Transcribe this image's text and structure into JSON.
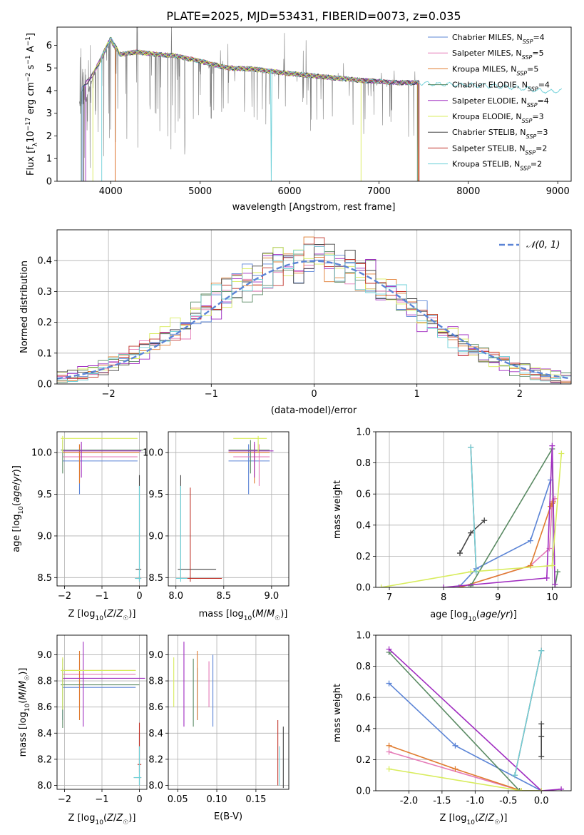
{
  "figure": {
    "title": "PLATE=2025, MJD=53431, FIBERID=0073, z=0.035"
  },
  "colors": {
    "series": [
      "#5b84d6",
      "#e57ab7",
      "#e07c30",
      "#5a8a63",
      "#a02cc0",
      "#d8ec5c",
      "#444444",
      "#c0332a",
      "#6ed0d8"
    ],
    "data_spectrum": "#808080",
    "normal": "#5b84d6",
    "grid": "#b0b0b0"
  },
  "legend_models": [
    {
      "name": "Chabrier MILES, N",
      "sub": "SSP",
      "suffix": "=4"
    },
    {
      "name": "Salpeter MILES, N",
      "sub": "SSP",
      "suffix": "=5"
    },
    {
      "name": "Kroupa MILES, N",
      "sub": "SSP",
      "suffix": "=5"
    },
    {
      "name": "Chabrier ELODIE, N",
      "sub": "SSP",
      "suffix": "=4"
    },
    {
      "name": "Salpeter ELODIE, N",
      "sub": "SSP",
      "suffix": "=4"
    },
    {
      "name": "Kroupa ELODIE, N",
      "sub": "SSP",
      "suffix": "=3"
    },
    {
      "name": "Chabrier STELIB, N",
      "sub": "SSP",
      "suffix": "=3"
    },
    {
      "name": "Salpeter STELIB, N",
      "sub": "SSP",
      "suffix": "=2"
    },
    {
      "name": "Kroupa STELIB, N",
      "sub": "SSP",
      "suffix": "=2"
    }
  ],
  "chart_data": [
    {
      "id": "spectrum",
      "type": "line",
      "xlabel": "wavelength [Angstrom, rest frame]",
      "ylabel_parts": [
        "Flux [f",
        "λ",
        "10",
        "−17",
        " erg cm",
        "−2",
        " s",
        "−1",
        " A",
        "−1",
        "]"
      ],
      "xlim": [
        3400,
        9150
      ],
      "ylim": [
        0,
        6.8
      ],
      "xticks": [
        4000,
        5000,
        6000,
        7000,
        8000,
        9000
      ],
      "yticks": [
        0,
        1,
        2,
        3,
        4,
        5,
        6
      ],
      "grid": false,
      "legend": "top-right",
      "continuum_x": [
        3650,
        3720,
        3800,
        3900,
        4000,
        4100,
        4300,
        4500,
        4700,
        5000,
        5300,
        5600,
        6000,
        6400,
        6800,
        7200,
        7420
      ],
      "continuum_y": [
        3.4,
        3.5,
        4.6,
        5.4,
        6.2,
        5.6,
        5.7,
        5.6,
        5.55,
        5.3,
        5.0,
        4.95,
        4.75,
        4.6,
        4.45,
        4.35,
        4.35
      ],
      "model_x": [
        3650,
        3720,
        3800,
        3900,
        4000,
        4100,
        4300,
        4500,
        4700,
        5000,
        5300,
        5600,
        6000,
        6400,
        6800,
        7200,
        7420,
        7600,
        8000,
        8300,
        8600,
        8900,
        9050
      ],
      "model_y": [
        3.9,
        4.3,
        4.7,
        5.5,
        6.3,
        5.6,
        5.7,
        5.6,
        5.55,
        5.3,
        5.0,
        4.95,
        4.75,
        4.6,
        4.45,
        4.35,
        4.35,
        4.3,
        4.25,
        4.2,
        4.1,
        3.95,
        4.0
      ]
    },
    {
      "id": "residuals",
      "type": "histogram",
      "xlabel": "(data-model)/error",
      "ylabel": "Normed distribution",
      "xlim": [
        -2.5,
        2.5
      ],
      "ylim": [
        0,
        0.5
      ],
      "xticks": [
        -2,
        -1,
        0,
        1,
        2
      ],
      "yticks": [
        0.0,
        0.1,
        0.2,
        0.3,
        0.4
      ],
      "grid": true,
      "legend": "top-right",
      "reference_curve": "𝒩(0, 1)"
    },
    {
      "id": "age_vs_Z",
      "type": "scatter",
      "xlabel": "Z [log₁₀(Z/Z☉)]",
      "ylabel": "age  [log₁₀(age/yr)]",
      "xlim": [
        -2.2,
        0.2
      ],
      "ylim": [
        8.4,
        10.25
      ],
      "xticks": [
        -2,
        -1,
        0
      ],
      "yticks": [
        8.5,
        9.0,
        9.5,
        10.0
      ],
      "grid": true
    },
    {
      "id": "age_vs_mass",
      "type": "scatter",
      "xlabel": "mass [log₁₀(M/M☉)]",
      "xlim": [
        7.92,
        9.18
      ],
      "ylim": [
        8.4,
        10.25
      ],
      "xticks": [
        8.0,
        8.5,
        9.0
      ],
      "yticks": [
        8.5,
        9.0,
        9.5,
        10.0
      ],
      "grid": true
    },
    {
      "id": "weight_vs_age",
      "type": "line",
      "xlabel": "age  [log₁₀(age/yr)]",
      "ylabel": "mass weight",
      "xlim": [
        6.75,
        10.35
      ],
      "ylim": [
        0,
        1.0
      ],
      "xticks": [
        7,
        8,
        9,
        10
      ],
      "yticks": [
        0.0,
        0.2,
        0.4,
        0.6,
        0.8,
        1.0
      ],
      "grid": true,
      "series": [
        {
          "x": [
            8.28,
            8.6,
            9.6,
            9.97
          ],
          "y": [
            0.0,
            0.12,
            0.3,
            0.69
          ]
        },
        {
          "x": [
            8.3,
            9.6,
            9.95,
            10.0,
            10.05
          ],
          "y": [
            0.0,
            0.14,
            0.25,
            0.55,
            0.57
          ]
        },
        {
          "x": [
            8.3,
            9.6,
            9.97,
            10.0,
            10.02
          ],
          "y": [
            0.0,
            0.14,
            0.52,
            0.54,
            0.55
          ]
        },
        {
          "x": [
            8.5,
            10.0,
            10.05,
            10.1
          ],
          "y": [
            0.01,
            0.89,
            0.0,
            0.1
          ]
        },
        {
          "x": [
            8.0,
            9.9,
            10.0,
            10.05
          ],
          "y": [
            0.0,
            0.06,
            0.91,
            0.02
          ]
        },
        {
          "x": [
            6.85,
            8.5,
            10.0,
            10.17
          ],
          "y": [
            0.0,
            0.1,
            0.14,
            0.86
          ]
        },
        {
          "x": [
            8.3,
            8.5,
            8.75
          ],
          "y": [
            0.22,
            0.35,
            0.43
          ]
        },
        {
          "x": [
            8.5,
            8.6
          ],
          "y": [
            0.9,
            0.1
          ]
        },
        {
          "x": [
            8.5,
            8.6
          ],
          "y": [
            0.9,
            0.1
          ]
        }
      ]
    },
    {
      "id": "mass_vs_Z",
      "type": "scatter",
      "xlabel": "Z [log₁₀(Z/Z☉)]",
      "ylabel": "mass [log₁₀(M/M☉)]",
      "xlim": [
        -2.2,
        0.2
      ],
      "ylim": [
        7.97,
        9.15
      ],
      "xticks": [
        -2,
        -1,
        0
      ],
      "yticks": [
        8.0,
        8.2,
        8.4,
        8.6,
        8.8,
        9.0
      ],
      "grid": true
    },
    {
      "id": "mass_vs_EBV",
      "type": "scatter",
      "xlabel": "E(B-V)",
      "xlim": [
        0.038,
        0.192
      ],
      "ylim": [
        7.97,
        9.15
      ],
      "xticks": [
        0.05,
        0.1,
        0.15
      ],
      "yticks": [
        8.0,
        8.2,
        8.4,
        8.6,
        8.8,
        9.0
      ],
      "grid": true
    },
    {
      "id": "weight_vs_Z",
      "type": "line",
      "xlabel": "Z [log₁₀(Z/Z☉)]",
      "ylabel": "mass weight",
      "xlim": [
        -2.5,
        0.45
      ],
      "ylim": [
        0,
        1.0
      ],
      "xticks": [
        -2.0,
        -1.5,
        -1.0,
        -0.5,
        0.0
      ],
      "yticks": [
        0.0,
        0.2,
        0.4,
        0.6,
        0.8,
        1.0
      ],
      "grid": true,
      "series": [
        {
          "x": [
            -2.3,
            -1.3,
            0.0
          ],
          "y": [
            0.69,
            0.29,
            0.0
          ]
        },
        {
          "x": [
            -2.3,
            -0.3,
            0.0
          ],
          "y": [
            0.25,
            0.0,
            0.0
          ]
        },
        {
          "x": [
            -2.3,
            -1.3,
            -0.3,
            0.0
          ],
          "y": [
            0.29,
            0.14,
            0.0,
            0.0
          ]
        },
        {
          "x": [
            -2.3,
            -0.33,
            0.0
          ],
          "y": [
            0.89,
            0.0,
            0.0
          ]
        },
        {
          "x": [
            -2.3,
            0.0,
            0.3
          ],
          "y": [
            0.91,
            0.0,
            0.01
          ]
        },
        {
          "x": [
            -2.3,
            -0.3,
            0.0
          ],
          "y": [
            0.14,
            0.0,
            0.0
          ]
        },
        {
          "x": [
            0.0,
            0.0,
            0.0
          ],
          "y": [
            0.22,
            0.35,
            0.43
          ]
        },
        {
          "x": [
            -0.4,
            0.0
          ],
          "y": [
            0.1,
            0.9
          ]
        },
        {
          "x": [
            -0.4,
            0.0
          ],
          "y": [
            0.1,
            0.9
          ]
        }
      ]
    }
  ]
}
